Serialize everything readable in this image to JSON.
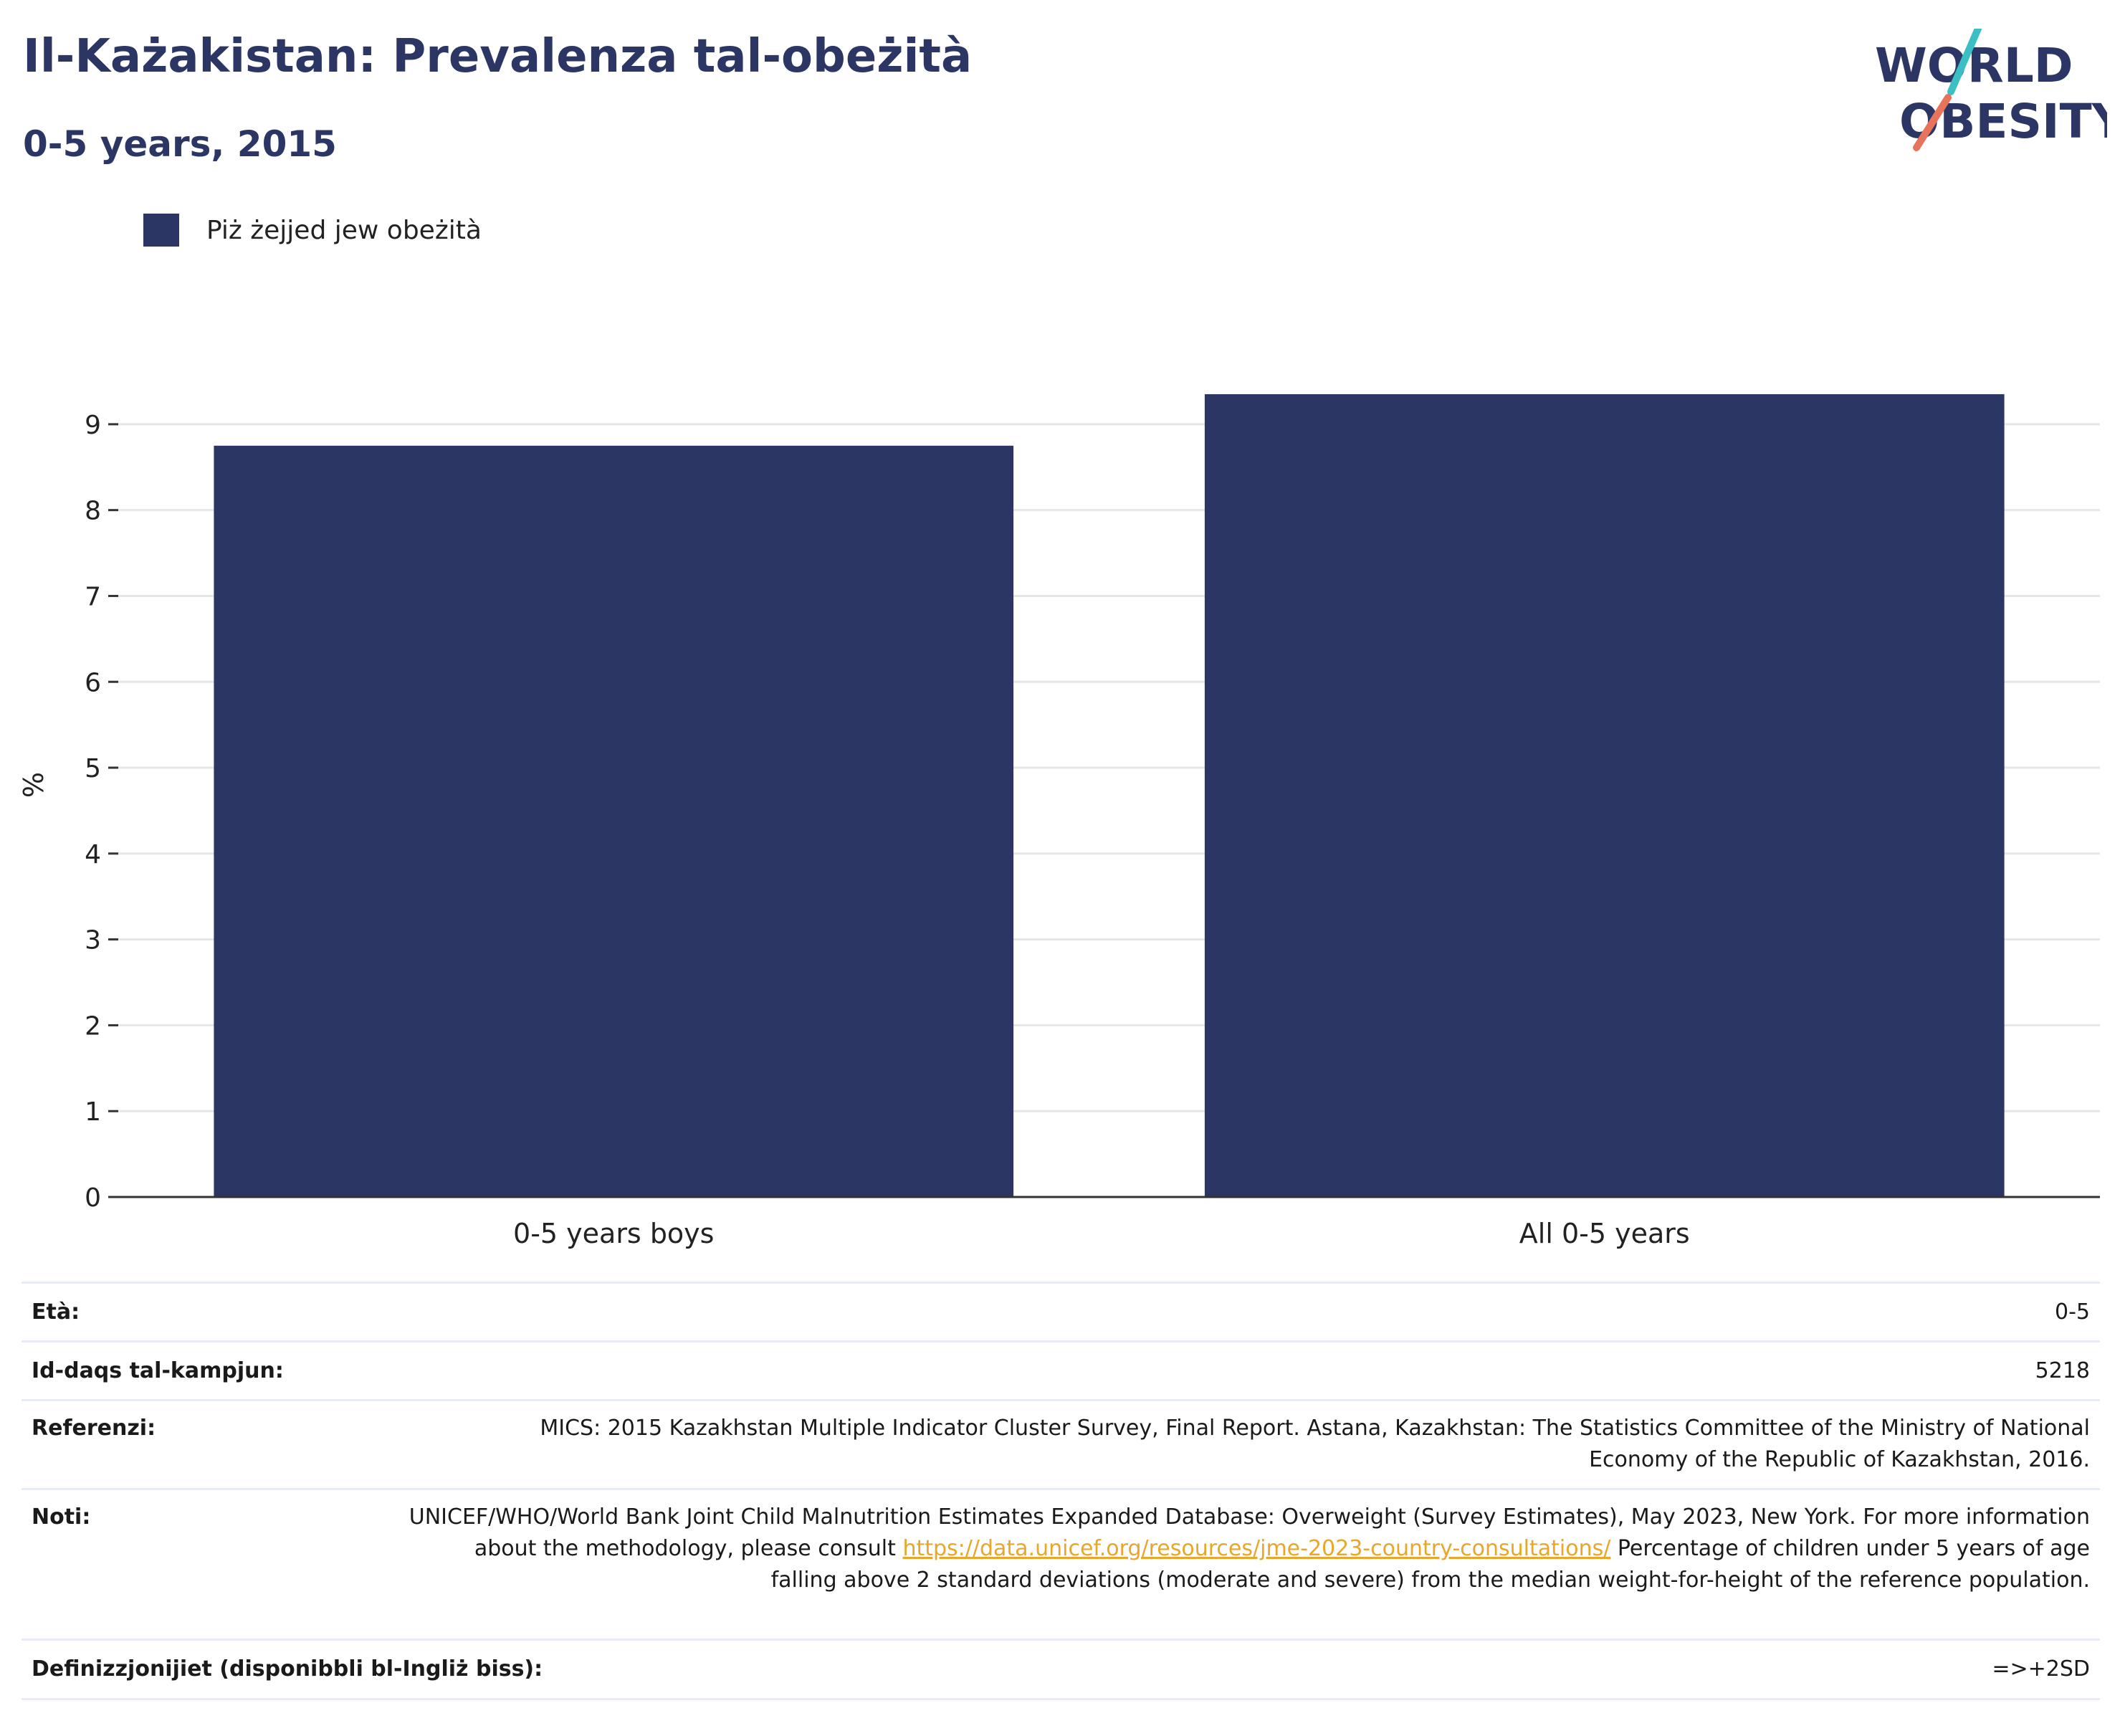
{
  "header": {
    "title": "Il-Każakistan: Prevalenza tal-obeżità",
    "subtitle": "0-5 years, 2015",
    "logo_line1": "WORLD",
    "logo_line2": "OBESITY"
  },
  "colors": {
    "bar": "#2b3664",
    "title": "#2b3664",
    "logo_teal": "#3bbfc4",
    "logo_coral": "#e8735a",
    "link": "#e8a72b"
  },
  "chart_data": {
    "type": "bar",
    "categories": [
      "0-5 years boys",
      "All 0-5 years"
    ],
    "series": [
      {
        "name": "Piż żejjed jew obeżità",
        "values": [
          8.75,
          9.35
        ]
      }
    ],
    "ylabel": "%",
    "xlabel": "",
    "ylim": [
      0,
      9.6
    ],
    "yticks": [
      "0",
      "1",
      "2",
      "3",
      "4",
      "5",
      "6",
      "7",
      "8",
      "9"
    ],
    "grid": true,
    "legend": "top-left"
  },
  "info": {
    "age": {
      "label": "Età:",
      "value": "0-5"
    },
    "sample": {
      "label": "Id-daqs tal-kampjun:",
      "value": "5218"
    },
    "refs": {
      "label": "Referenzi:",
      "value": "MICS: 2015 Kazakhstan Multiple Indicator Cluster Survey, Final Report. Astana, Kazakhstan: The Statistics Committee of the Ministry of National Economy of the Republic of Kazakhstan, 2016."
    },
    "notes": {
      "label": "Noti:",
      "text1": "UNICEF/WHO/World Bank Joint Child Malnutrition Estimates Expanded Database: Overweight (Survey Estimates), May 2023, New York. For more information about the methodology, please consult ",
      "link": "https://data.unicef.org/resources/jme-2023-country-consultations/",
      "text2": " Percentage of children under 5 years of age falling above 2 standard deviations (moderate and severe) from the median weight-for-height of the reference population."
    },
    "defs": {
      "label": "Definizzjonijiet (disponibbli bl-Ingliż biss):",
      "value": "=>+2SD"
    }
  }
}
